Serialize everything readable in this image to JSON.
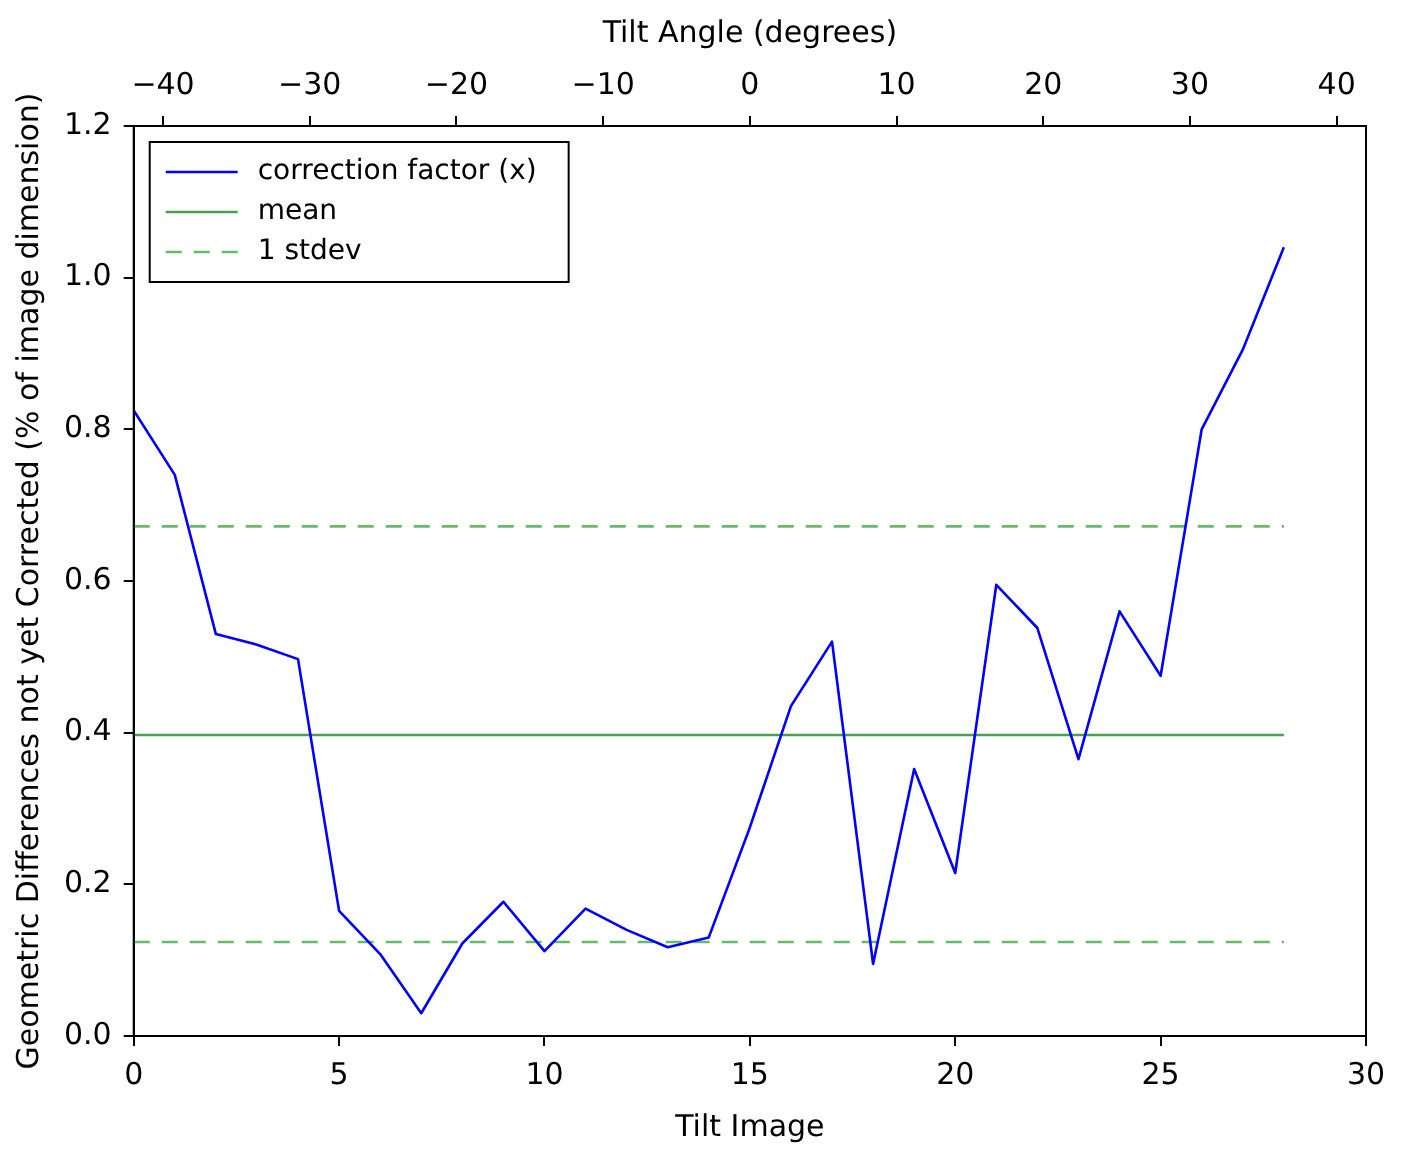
{
  "chart_data": {
    "type": "line",
    "xlabel": "Tilt Image",
    "ylabel": "Geometric Differences not yet Corrected (% of image dimension)",
    "x2label": "Tilt Angle (degrees)",
    "xlim": [
      0,
      30
    ],
    "xticks": [
      0,
      5,
      10,
      15,
      20,
      25,
      30
    ],
    "ylim": [
      0,
      1.2
    ],
    "yticks": [
      {
        "value": 0,
        "label": "0.0"
      },
      {
        "value": 0.2,
        "label": "0.2"
      },
      {
        "value": 0.4,
        "label": "0.4"
      },
      {
        "value": 0.6,
        "label": "0.6"
      },
      {
        "value": 0.8,
        "label": "0.8"
      },
      {
        "value": 1.0,
        "label": "1.0"
      },
      {
        "value": 1.2,
        "label": "1.2"
      }
    ],
    "x2lim": [
      -42,
      42
    ],
    "x2ticks": [
      {
        "value": -40,
        "label": "−40"
      },
      {
        "value": -30,
        "label": "−30"
      },
      {
        "value": -20,
        "label": "−20"
      },
      {
        "value": -10,
        "label": "−10"
      },
      0,
      10,
      20,
      30,
      40
    ],
    "legend": "top left",
    "grid": false,
    "marker": "none",
    "series": [
      {
        "name": "correction factor (x)",
        "color": "#0000ff",
        "line_style": "solid",
        "x": [
          0,
          1,
          2,
          3,
          4,
          5,
          6,
          7,
          8,
          9,
          10,
          11,
          12,
          13,
          14,
          15,
          16,
          17,
          18,
          19,
          20,
          21,
          22,
          23,
          24,
          25,
          26,
          27,
          28
        ],
        "values": [
          0.825,
          0.74,
          0.53,
          0.516,
          0.497,
          0.165,
          0.108,
          0.03,
          0.122,
          0.177,
          0.112,
          0.168,
          0.14,
          0.117,
          0.13,
          0.275,
          0.435,
          0.52,
          0.095,
          0.352,
          0.215,
          0.595,
          0.538,
          0.365,
          0.56,
          0.475,
          0.8,
          0.905,
          1.04
        ]
      },
      {
        "name": "mean",
        "color": "#4c9f4c",
        "line_style": "solid",
        "x": [
          0,
          28
        ],
        "values": [
          0.397,
          0.397
        ]
      },
      {
        "name": "1 stdev",
        "color": "#66bb66",
        "line_style": "dashed",
        "x": [
          0,
          28
        ],
        "values": [
          0.672,
          0.672
        ]
      },
      {
        "color": "#66bb66",
        "line_style": "dashed",
        "x": [
          0,
          28
        ],
        "values": [
          0.124,
          0.124
        ]
      }
    ]
  }
}
